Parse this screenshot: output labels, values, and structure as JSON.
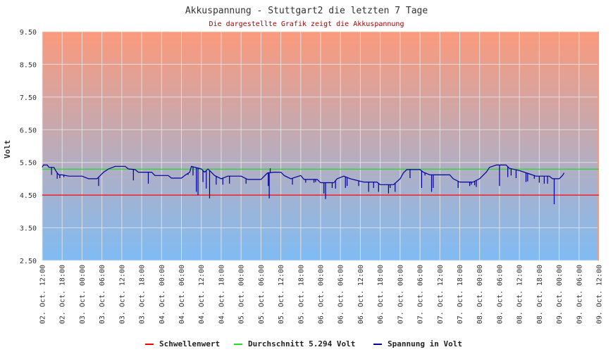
{
  "chart_data": {
    "type": "line",
    "title": "Akkuspannung - Stuttgart2 die letzten 7 Tage",
    "subtitle": "Die dargestellte Grafik zeigt die Akkuspannung",
    "ylabel": "Volt",
    "ylim": [
      2.5,
      9.5
    ],
    "y_ticks": [
      "9.50",
      "8.50",
      "7.50",
      "6.50",
      "5.50",
      "4.50",
      "3.50",
      "2.50"
    ],
    "x_ticks": [
      "02. Oct. 12:00",
      "02. Oct. 18:00",
      "03. Oct. 00:00",
      "03. Oct. 06:00",
      "03. Oct. 12:00",
      "03. Oct. 18:00",
      "04. Oct. 00:00",
      "04. Oct. 06:00",
      "04. Oct. 12:00",
      "04. Oct. 18:00",
      "05. Oct. 00:00",
      "05. Oct. 06:00",
      "05. Oct. 12:00",
      "05. Oct. 18:00",
      "06. Oct. 00:00",
      "06. Oct. 06:00",
      "06. Oct. 12:00",
      "06. Oct. 18:00",
      "07. Oct. 00:00",
      "07. Oct. 06:00",
      "07. Oct. 12:00",
      "07. Oct. 18:00",
      "08. Oct. 00:00",
      "08. Oct. 06:00",
      "08. Oct. 12:00",
      "08. Oct. 18:00",
      "09. Oct. 00:00",
      "09. Oct. 06:00",
      "09. Oct. 12:00"
    ],
    "grid": true,
    "background_gradient": [
      "#fb9a7c",
      "#7fbcf4"
    ],
    "legend_position": "bottom",
    "thresholds": [
      {
        "name": "Schwellenwert",
        "value": 4.5,
        "color": "#ff0000"
      },
      {
        "name": "Durchschnitt 5.294 Volt",
        "value": 5.294,
        "color": "#22dd22"
      }
    ],
    "series": [
      {
        "name": "Spannung in Volt",
        "color": "#000099",
        "points": [
          [
            0,
            5.35
          ],
          [
            0.3,
            5.42
          ],
          [
            1.5,
            5.42
          ],
          [
            2.0,
            5.35
          ],
          [
            3.5,
            5.35
          ],
          [
            4.2,
            5.22
          ],
          [
            5.0,
            5.12
          ],
          [
            6.0,
            5.12
          ],
          [
            8.0,
            5.08
          ],
          [
            12.0,
            5.08
          ],
          [
            14.0,
            5.0
          ],
          [
            16.5,
            5.0
          ],
          [
            17.5,
            5.1
          ],
          [
            18.5,
            5.2
          ],
          [
            20.0,
            5.3
          ],
          [
            22.0,
            5.38
          ],
          [
            25.0,
            5.38
          ],
          [
            26.0,
            5.3
          ],
          [
            28.0,
            5.28
          ],
          [
            29.0,
            5.2
          ],
          [
            33.0,
            5.2
          ],
          [
            34.0,
            5.1
          ],
          [
            38.0,
            5.1
          ],
          [
            39.0,
            5.02
          ],
          [
            42.0,
            5.02
          ],
          [
            43.0,
            5.1
          ],
          [
            44.5,
            5.2
          ],
          [
            45.0,
            5.38
          ],
          [
            48.0,
            5.3
          ],
          [
            49.0,
            5.2
          ],
          [
            50.0,
            5.3
          ],
          [
            51.0,
            5.2
          ],
          [
            52.0,
            5.1
          ],
          [
            54.0,
            5.0
          ],
          [
            56.0,
            5.08
          ],
          [
            60.0,
            5.08
          ],
          [
            62.0,
            4.98
          ],
          [
            66.0,
            4.98
          ],
          [
            67.0,
            5.08
          ],
          [
            68.0,
            5.18
          ],
          [
            70.0,
            5.2
          ],
          [
            72.0,
            5.2
          ],
          [
            73.0,
            5.1
          ],
          [
            75.0,
            5.0
          ],
          [
            78.0,
            5.1
          ],
          [
            79.0,
            4.98
          ],
          [
            83.0,
            4.98
          ],
          [
            84.0,
            4.88
          ],
          [
            88.0,
            4.88
          ],
          [
            89.0,
            5.0
          ],
          [
            91.0,
            5.08
          ],
          [
            93.0,
            5.0
          ],
          [
            97.0,
            4.9
          ],
          [
            101.0,
            4.9
          ],
          [
            102.0,
            4.82
          ],
          [
            106.0,
            4.82
          ],
          [
            108.0,
            5.0
          ],
          [
            109.0,
            5.18
          ],
          [
            110.0,
            5.28
          ],
          [
            114.0,
            5.28
          ],
          [
            115.0,
            5.2
          ],
          [
            117.0,
            5.12
          ],
          [
            123.0,
            5.12
          ],
          [
            124.0,
            5.0
          ],
          [
            126.0,
            4.9
          ],
          [
            130.0,
            4.9
          ],
          [
            132.0,
            5.0
          ],
          [
            134.0,
            5.2
          ],
          [
            135.0,
            5.35
          ],
          [
            137.0,
            5.42
          ],
          [
            140.0,
            5.42
          ],
          [
            141.0,
            5.32
          ],
          [
            144.0,
            5.25
          ],
          [
            147.0,
            5.15
          ],
          [
            149.0,
            5.08
          ],
          [
            153.0,
            5.08
          ],
          [
            154.0,
            5.0
          ],
          [
            156.0,
            5.0
          ],
          [
            157.0,
            5.1
          ],
          [
            157.5,
            5.18
          ]
        ],
        "dips": [
          [
            2.8,
            5.12
          ],
          [
            4.5,
            5.0
          ],
          [
            5.3,
            5.02
          ],
          [
            6.5,
            5.05
          ],
          [
            17.0,
            4.78
          ],
          [
            27.5,
            4.95
          ],
          [
            32.0,
            4.85
          ],
          [
            44.0,
            5.12
          ],
          [
            45.5,
            5.1
          ],
          [
            46.5,
            4.6
          ],
          [
            47.0,
            4.5
          ],
          [
            48.5,
            4.9
          ],
          [
            49.5,
            4.7
          ],
          [
            50.5,
            4.4
          ],
          [
            52.5,
            4.82
          ],
          [
            54.5,
            4.82
          ],
          [
            56.5,
            4.85
          ],
          [
            61.5,
            4.85
          ],
          [
            68.2,
            4.78
          ],
          [
            68.5,
            4.4
          ],
          [
            68.8,
            5.32
          ],
          [
            75.5,
            4.82
          ],
          [
            79.5,
            4.88
          ],
          [
            82.0,
            4.88
          ],
          [
            82.5,
            4.9
          ],
          [
            85.0,
            4.55
          ],
          [
            85.5,
            4.38
          ],
          [
            87.5,
            4.72
          ],
          [
            88.5,
            4.7
          ],
          [
            91.5,
            4.72
          ],
          [
            92.0,
            4.78
          ],
          [
            95.5,
            4.78
          ],
          [
            98.5,
            4.6
          ],
          [
            100.0,
            4.72
          ],
          [
            101.5,
            4.6
          ],
          [
            104.5,
            4.55
          ],
          [
            105.0,
            4.72
          ],
          [
            106.5,
            4.6
          ],
          [
            111.0,
            5.02
          ],
          [
            114.5,
            4.72
          ],
          [
            115.5,
            5.1
          ],
          [
            117.5,
            4.6
          ],
          [
            118.0,
            4.72
          ],
          [
            125.5,
            4.72
          ],
          [
            129.0,
            4.78
          ],
          [
            129.5,
            4.82
          ],
          [
            130.5,
            4.8
          ],
          [
            131.0,
            4.75
          ],
          [
            138.0,
            4.78
          ],
          [
            140.5,
            5.05
          ],
          [
            141.5,
            5.1
          ],
          [
            143.0,
            5.02
          ],
          [
            146.0,
            4.9
          ],
          [
            146.5,
            4.92
          ],
          [
            148.5,
            5.0
          ],
          [
            150.0,
            4.88
          ],
          [
            151.5,
            4.85
          ],
          [
            152.5,
            4.85
          ],
          [
            154.5,
            4.22
          ]
        ]
      }
    ]
  },
  "legend": {
    "items": [
      {
        "label": "Schwellenwert",
        "color": "#ff0000"
      },
      {
        "label": "Durchschnitt 5.294 Volt",
        "color": "#22dd22"
      },
      {
        "label": "Spannung in Volt",
        "color": "#000099"
      }
    ]
  }
}
